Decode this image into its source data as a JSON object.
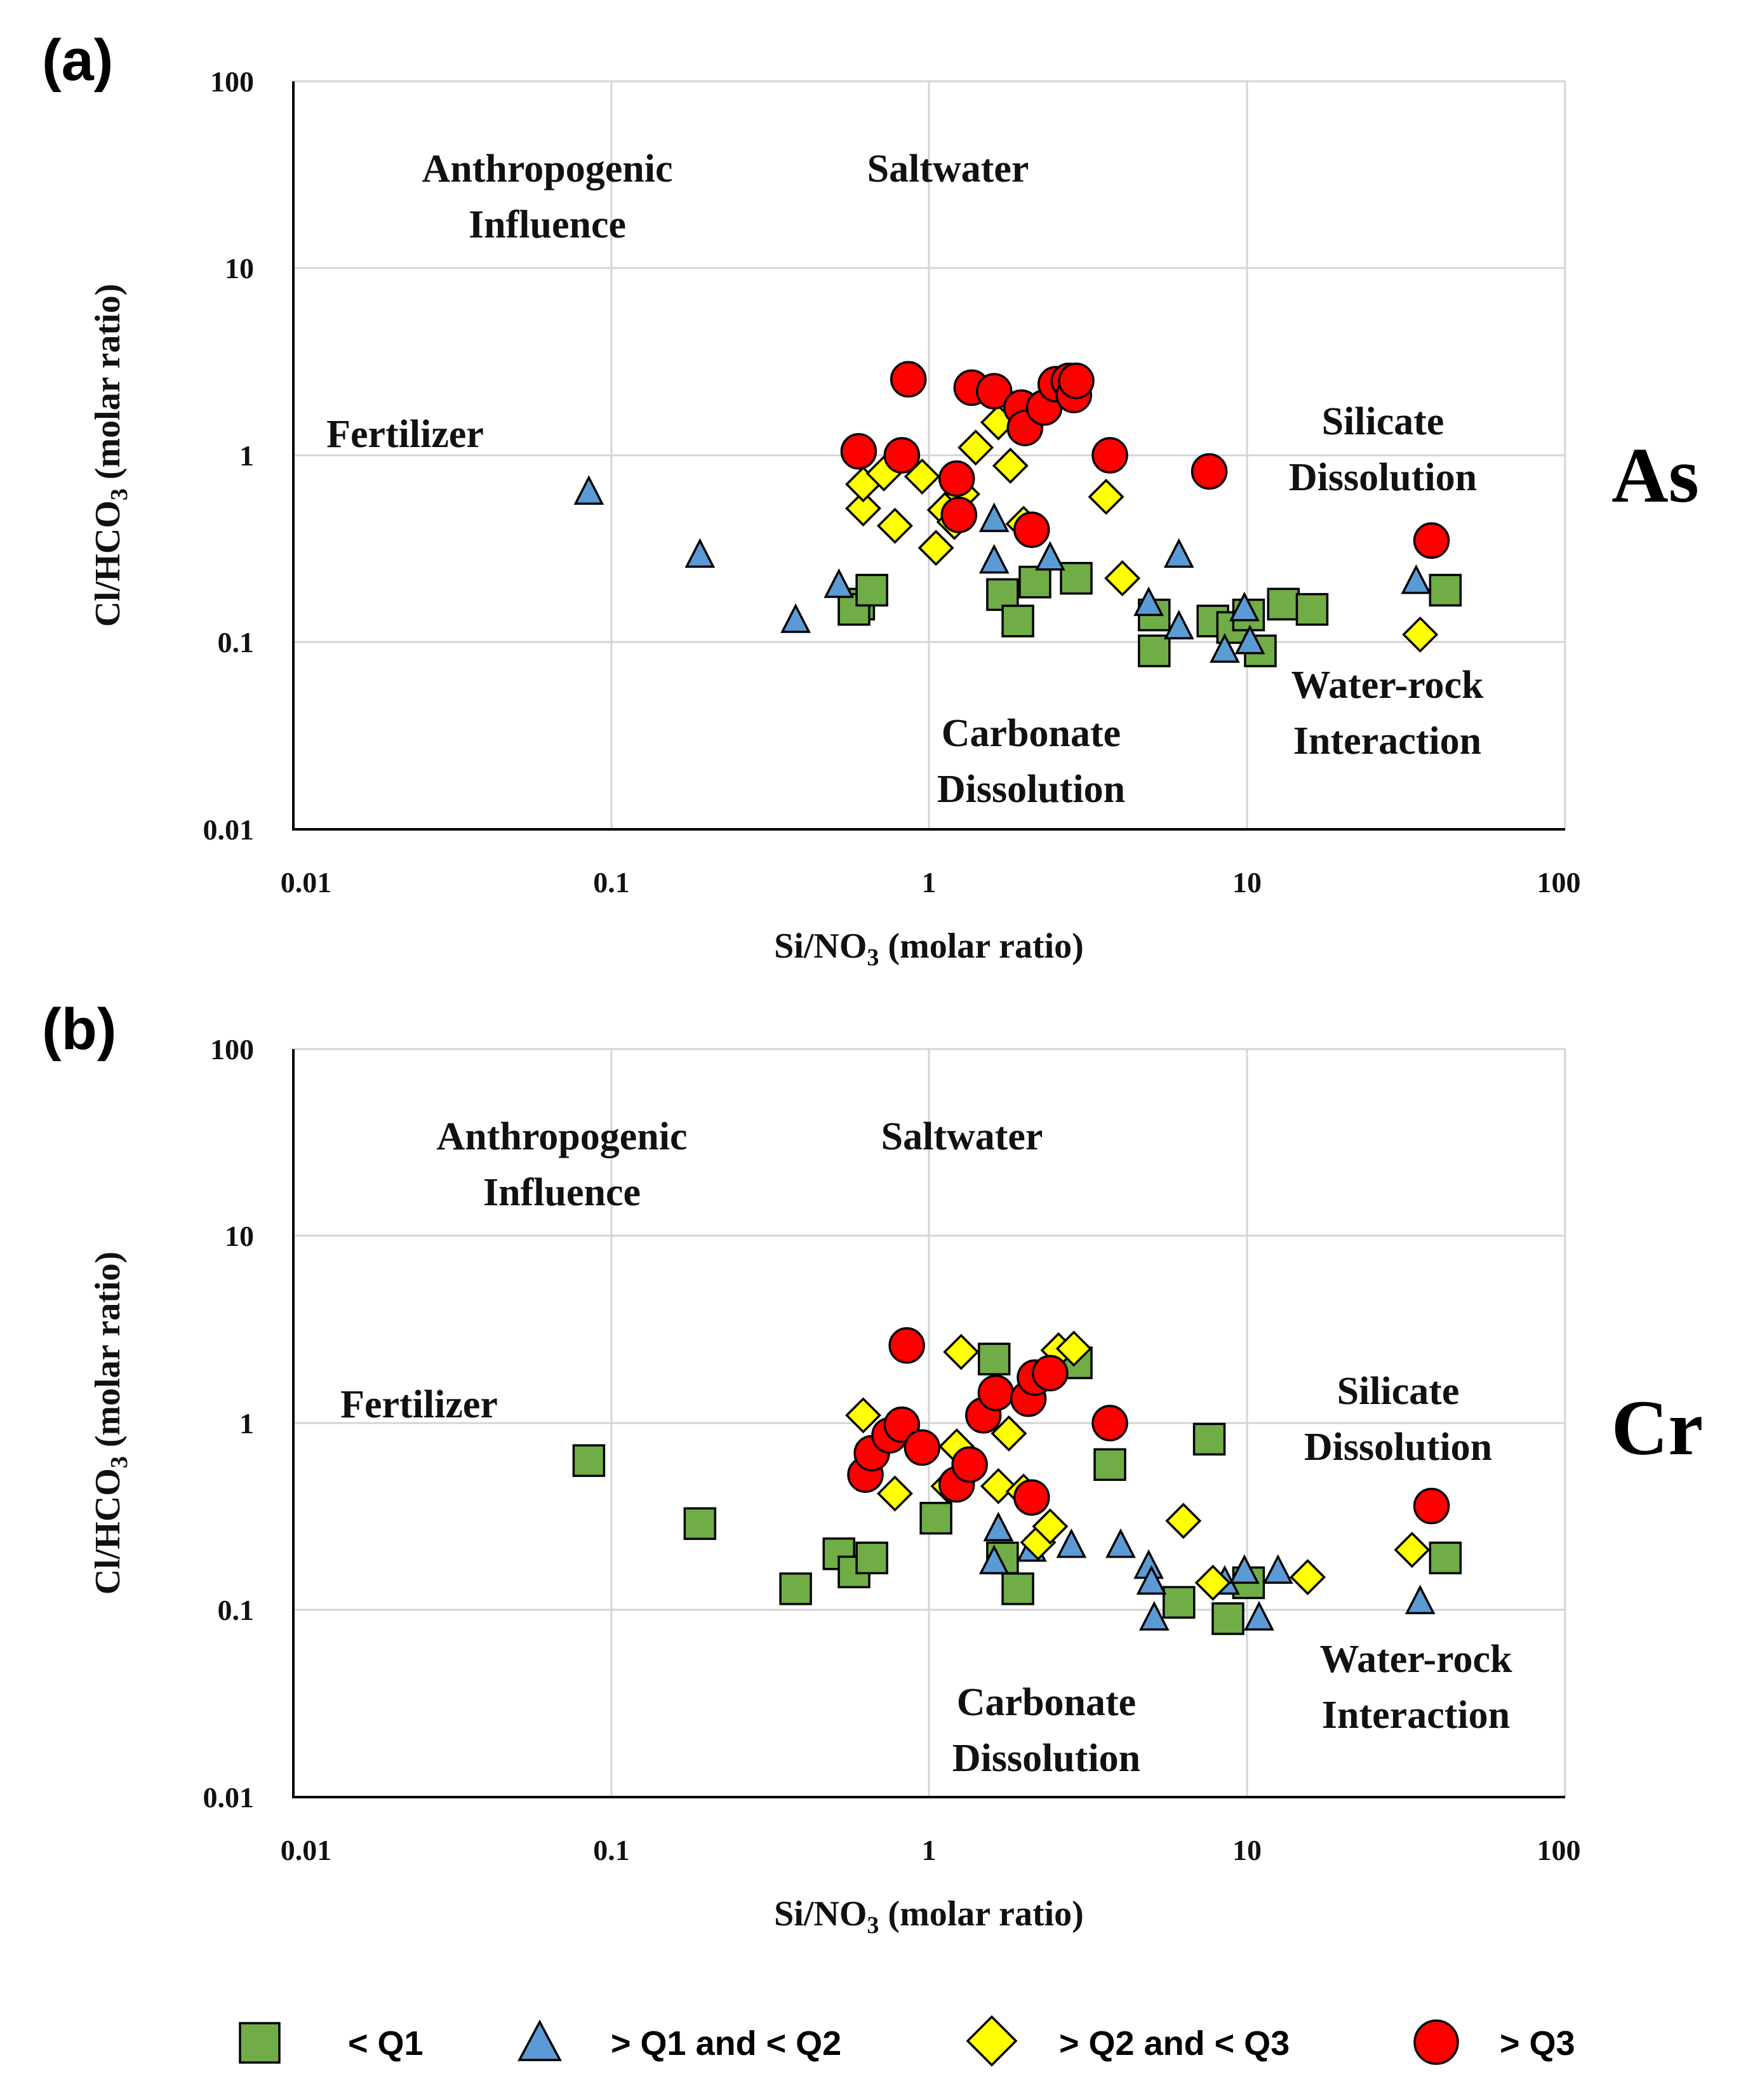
{
  "colors": {
    "lt_q1": "#70AD47",
    "q1_q2": "#5B9BD5",
    "q2_q3": "#FFFF00",
    "gt_q3": "#FF0000"
  },
  "legend": [
    {
      "label": "< Q1",
      "marker": "square",
      "color": "#70AD47"
    },
    {
      "label": "> Q1 and < Q2",
      "marker": "triangle",
      "color": "#5B9BD5"
    },
    {
      "label": "> Q2 and < Q3",
      "marker": "diamond",
      "color": "#FFFF00"
    },
    {
      "label": "> Q3",
      "marker": "circle",
      "color": "#FF0000"
    }
  ],
  "chart_data": [
    {
      "panel": "(a)",
      "element": "As",
      "type": "scatter",
      "xscale": "log",
      "yscale": "log",
      "xlim": [
        0.01,
        100
      ],
      "ylim": [
        0.01,
        100
      ],
      "xticks": [
        "0.01",
        "0.1",
        "1",
        "10",
        "100"
      ],
      "yticks": [
        "0.01",
        "0.1",
        "1",
        "10",
        "100"
      ],
      "xlabel_main": "Si/NO",
      "xlabel_sub": "3",
      "xlabel_tail": " (molar ratio)",
      "ylabel_main": "Cl/HCO",
      "ylabel_sub": "3",
      "ylabel_tail": " (molar ratio)",
      "annotations": {
        "anthropogenic_1": "Anthropogenic",
        "anthropogenic_2": "Influence",
        "saltwater": "Saltwater",
        "fertilizer": "Fertilizer",
        "silicate_1": "Silicate",
        "silicate_2": "Dissolution",
        "carbonate_1": "Carbonate",
        "carbonate_2": "Dissolution",
        "waterrock_1": "Water-rock",
        "waterrock_2": "Interaction"
      },
      "series": [
        {
          "name": "< Q1",
          "marker": "square",
          "color": "#70AD47",
          "x": [
            0.6,
            0.58,
            0.66,
            1.7,
            1.9,
            2.15,
            2.9,
            5.1,
            5.1,
            7.8,
            9.0,
            10.1,
            11.0,
            13.0,
            16.0,
            42.0
          ],
          "y": [
            0.16,
            0.15,
            0.19,
            0.18,
            0.13,
            0.21,
            0.22,
            0.14,
            0.09,
            0.13,
            0.12,
            0.14,
            0.09,
            0.16,
            0.15,
            0.19
          ]
        },
        {
          "name": "> Q1 and < Q2",
          "marker": "triangle",
          "color": "#5B9BD5",
          "x": [
            0.085,
            0.19,
            0.38,
            0.52,
            1.6,
            1.6,
            2.4,
            4.9,
            6.1,
            6.1,
            8.5,
            9.8,
            10.2,
            34.0
          ],
          "y": [
            0.63,
            0.29,
            0.13,
            0.2,
            0.45,
            0.27,
            0.28,
            0.16,
            0.12,
            0.29,
            0.09,
            0.15,
            0.1,
            0.21
          ]
        },
        {
          "name": "> Q2 and < Q3",
          "marker": "diamond",
          "color": "#FFFF00",
          "x": [
            0.62,
            0.62,
            0.72,
            0.78,
            0.95,
            1.05,
            1.12,
            1.2,
            1.27,
            1.4,
            1.65,
            1.8,
            1.98,
            3.6,
            4.05,
            35.0
          ],
          "y": [
            0.52,
            0.7,
            0.8,
            0.42,
            0.77,
            0.32,
            0.51,
            0.44,
            0.62,
            1.1,
            1.5,
            0.88,
            0.43,
            0.6,
            0.22,
            0.11
          ]
        },
        {
          "name": "> Q3",
          "marker": "circle",
          "color": "#FF0000",
          "x": [
            0.6,
            0.82,
            0.86,
            1.22,
            1.24,
            1.36,
            1.6,
            1.95,
            2.0,
            2.1,
            2.3,
            2.5,
            2.75,
            2.85,
            2.9,
            3.7,
            7.6,
            38.0
          ],
          "y": [
            1.05,
            1.0,
            2.55,
            0.75,
            0.48,
            2.3,
            2.2,
            1.8,
            1.4,
            0.4,
            1.8,
            2.4,
            2.5,
            2.1,
            2.5,
            1.0,
            0.82,
            0.35
          ]
        }
      ]
    },
    {
      "panel": "(b)",
      "element": "Cr",
      "type": "scatter",
      "xscale": "log",
      "yscale": "log",
      "xlim": [
        0.01,
        100
      ],
      "ylim": [
        0.01,
        100
      ],
      "xticks": [
        "0.01",
        "0.1",
        "1",
        "10",
        "100"
      ],
      "yticks": [
        "0.01",
        "0.1",
        "1",
        "10",
        "100"
      ],
      "xlabel_main": "Si/NO",
      "xlabel_sub": "3",
      "xlabel_tail": " (molar ratio)",
      "ylabel_main": "Cl/HCO",
      "ylabel_sub": "3",
      "ylabel_tail": " (molar ratio)",
      "annotations": {
        "anthropogenic_1": "Anthropogenic",
        "anthropogenic_2": "Influence",
        "saltwater": "Saltwater",
        "fertilizer": "Fertilizer",
        "silicate_1": "Silicate",
        "silicate_2": "Dissolution",
        "carbonate_1": "Carbonate",
        "carbonate_2": "Dissolution",
        "waterrock_1": "Water-rock",
        "waterrock_2": "Interaction"
      },
      "series": [
        {
          "name": "< Q1",
          "marker": "square",
          "color": "#70AD47",
          "x": [
            0.085,
            0.19,
            0.38,
            0.52,
            0.58,
            0.66,
            1.05,
            1.6,
            1.7,
            1.9,
            2.9,
            3.7,
            6.1,
            7.6,
            8.7,
            10.1,
            42.0
          ],
          "y": [
            0.63,
            0.29,
            0.13,
            0.2,
            0.16,
            0.19,
            0.31,
            2.2,
            0.19,
            0.13,
            2.1,
            0.6,
            0.11,
            0.82,
            0.09,
            0.14,
            0.19
          ]
        },
        {
          "name": "> Q1 and < Q2",
          "marker": "triangle",
          "color": "#5B9BD5",
          "x": [
            1.6,
            1.65,
            2.1,
            2.8,
            4.0,
            4.9,
            5.0,
            5.1,
            8.5,
            9.8,
            10.9,
            12.5,
            35.0
          ],
          "y": [
            0.18,
            0.27,
            0.21,
            0.22,
            0.22,
            0.17,
            0.14,
            0.09,
            0.14,
            0.16,
            0.09,
            0.16,
            0.11
          ]
        },
        {
          "name": "> Q2 and < Q3",
          "marker": "diamond",
          "color": "#FFFF00",
          "x": [
            0.62,
            0.78,
            1.15,
            1.22,
            1.26,
            1.65,
            1.78,
            1.98,
            2.2,
            2.4,
            2.55,
            2.85,
            6.3,
            7.8,
            15.5,
            33.0
          ],
          "y": [
            1.1,
            0.42,
            0.46,
            0.75,
            2.4,
            0.46,
            0.88,
            0.43,
            0.23,
            0.28,
            2.45,
            2.5,
            0.3,
            0.14,
            0.15,
            0.21
          ]
        },
        {
          "name": "> Q3",
          "marker": "circle",
          "color": "#FF0000",
          "x": [
            0.63,
            0.66,
            0.75,
            0.82,
            0.85,
            0.95,
            1.22,
            1.34,
            1.48,
            1.62,
            2.05,
            2.1,
            2.15,
            2.4,
            3.7,
            38.0
          ],
          "y": [
            0.53,
            0.69,
            0.86,
            0.98,
            2.6,
            0.74,
            0.47,
            0.6,
            1.1,
            1.45,
            1.35,
            0.4,
            1.75,
            1.85,
            1.0,
            0.36
          ]
        }
      ]
    }
  ]
}
